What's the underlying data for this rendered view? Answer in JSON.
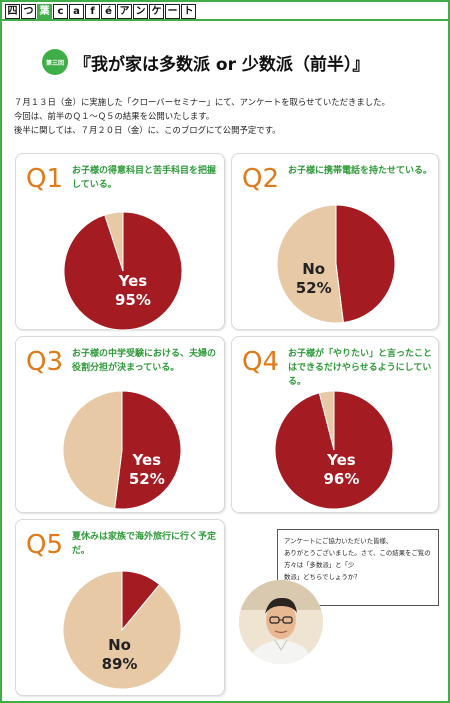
{
  "header": {
    "tiles": [
      {
        "char": "四",
        "green": false
      },
      {
        "char": "つ",
        "green": false
      },
      {
        "char": "葉",
        "green": true
      },
      {
        "char": "c",
        "green": false
      },
      {
        "char": "a",
        "green": false
      },
      {
        "char": "f",
        "green": false
      },
      {
        "char": "é",
        "green": false
      },
      {
        "char": "ア",
        "green": false
      },
      {
        "char": "ン",
        "green": false
      },
      {
        "char": "ケ",
        "green": false
      },
      {
        "char": "ー",
        "green": false
      },
      {
        "char": "ト",
        "green": false
      }
    ]
  },
  "badge": "第三回",
  "title": "『我が家は多数派 or 少数派（前半）』",
  "intro": [
    "７月１３日（金）に実施した「クローバーセミナー」にて、アンケートを取らせていただきました。",
    "今回は、前半のＱ１～Ｑ５の結果を公開いたします。",
    "後半に関しては、７月２０日（金）に、このブログにて公開予定です。"
  ],
  "colors": {
    "red": "#a51b22",
    "beige": "#e8c9a6",
    "green": "#3fae49",
    "orange": "#e07a18"
  },
  "chart_data": [
    {
      "type": "pie",
      "question": "Q1",
      "text": "お子様の得意科目と苦手科目を把握している。",
      "slices": [
        {
          "name": "Yes",
          "value": 95
        },
        {
          "name": "",
          "value": 5
        }
      ],
      "label": {
        "name": "Yes",
        "percent": "95%"
      }
    },
    {
      "type": "pie",
      "question": "Q2",
      "text": "お子様に携帯電話を持たせている。",
      "slices": [
        {
          "name": "",
          "value": 48
        },
        {
          "name": "No",
          "value": 52
        }
      ],
      "label": {
        "name": "No",
        "percent": "52%"
      }
    },
    {
      "type": "pie",
      "question": "Q3",
      "text": "お子様の中学受験における、夫婦の役割分担が決まっている。",
      "slices": [
        {
          "name": "Yes",
          "value": 52
        },
        {
          "name": "",
          "value": 48
        }
      ],
      "label": {
        "name": "Yes",
        "percent": "52%"
      }
    },
    {
      "type": "pie",
      "question": "Q4",
      "text": "お子様が「やりたい」と言ったことはできるだけやらせるようにしている。",
      "slices": [
        {
          "name": "Yes",
          "value": 96
        },
        {
          "name": "",
          "value": 4
        }
      ],
      "label": {
        "name": "Yes",
        "percent": "96%"
      }
    },
    {
      "type": "pie",
      "question": "Q5",
      "text": "夏休みは家族で海外旅行に行く予定だ。",
      "slices": [
        {
          "name": "",
          "value": 11
        },
        {
          "name": "No",
          "value": 89
        }
      ],
      "label": {
        "name": "No",
        "percent": "89%"
      }
    }
  ],
  "bubble": [
    "アンケートにご協力いただいた皆様、",
    "ありがとうございました。さて、この結果をご覧の方々は「多数派」と「少",
    "数派」どちらでしょうか？"
  ]
}
